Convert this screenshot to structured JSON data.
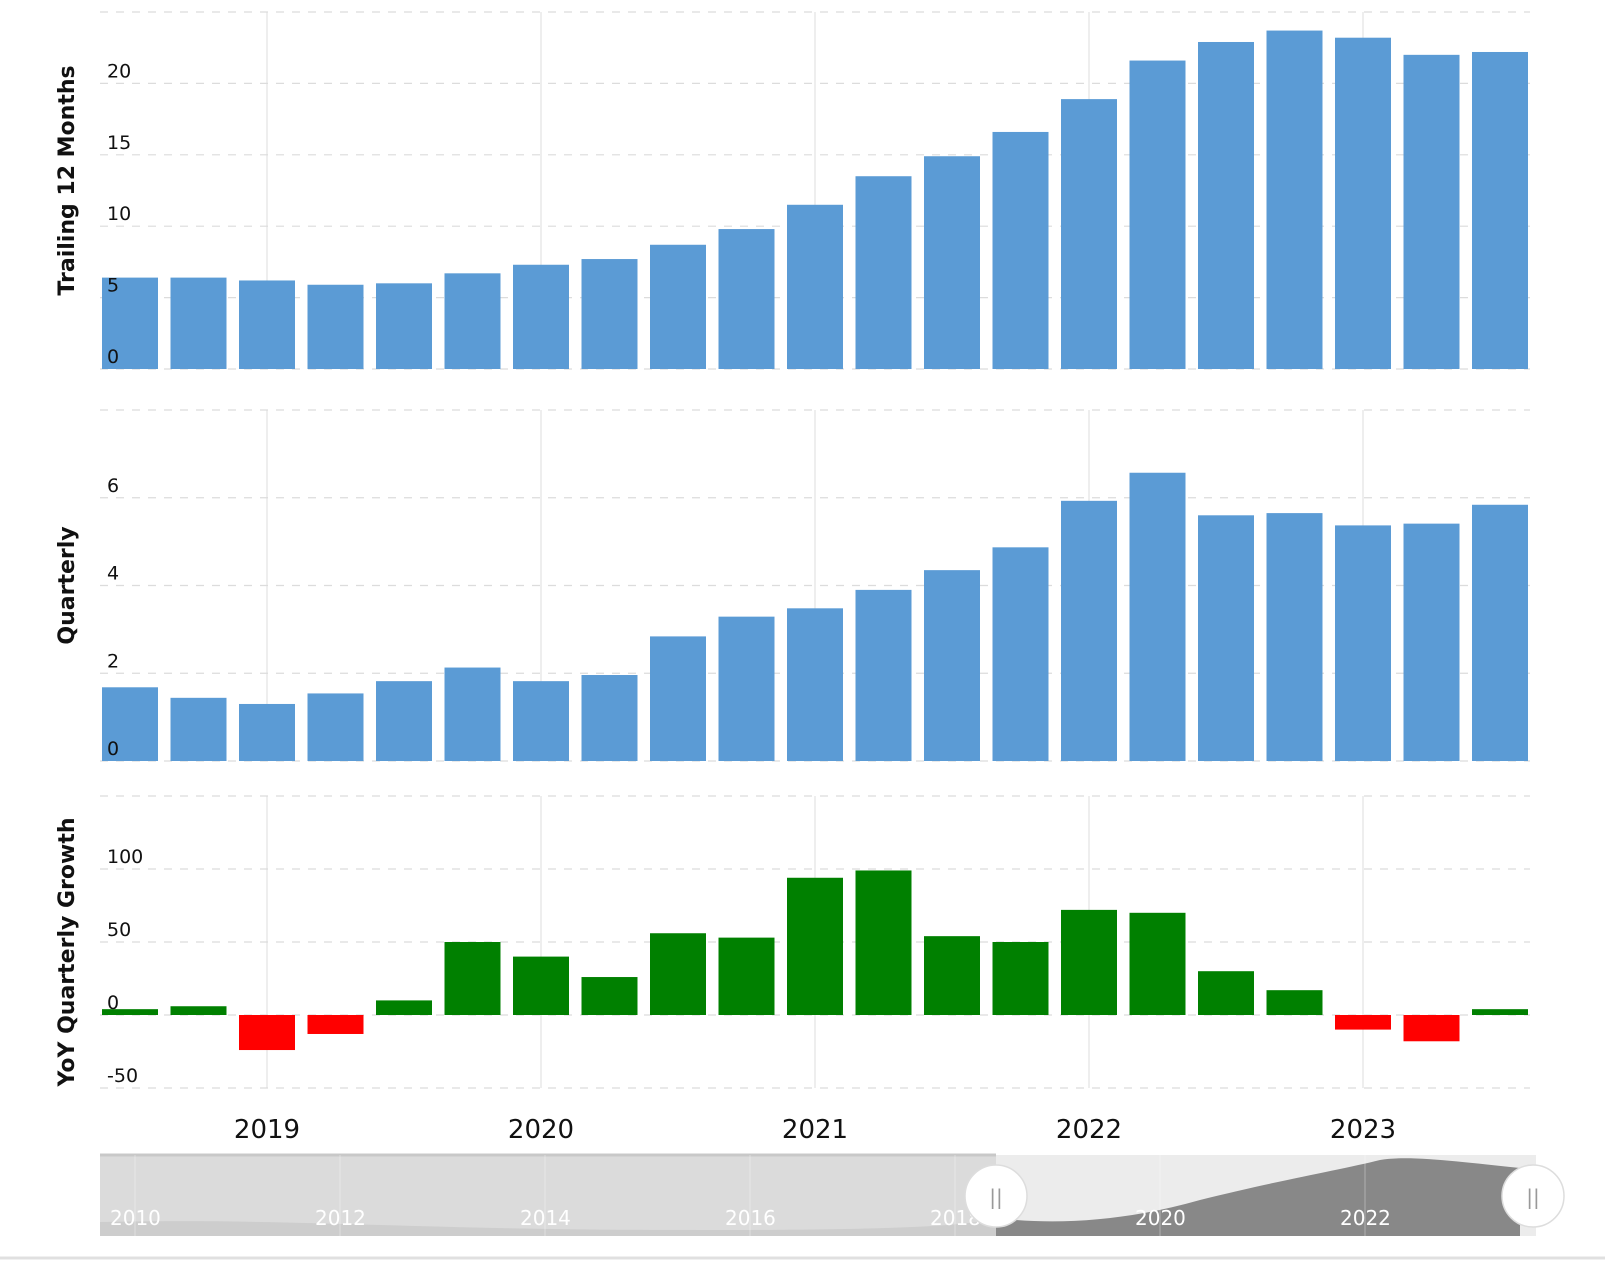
{
  "chart_data": [
    {
      "type": "bar",
      "ylabel": "Trailing 12 Months",
      "ylim": [
        0,
        25
      ],
      "yticks": [
        0,
        5,
        10,
        15,
        20
      ],
      "grid": true,
      "color": "#5b9bd5",
      "x": [
        "2018-06-30",
        "2018-09-30",
        "2018-12-31",
        "2019-03-31",
        "2019-06-30",
        "2019-09-30",
        "2019-12-31",
        "2020-03-31",
        "2020-06-30",
        "2020-09-30",
        "2020-12-31",
        "2021-03-31",
        "2021-06-30",
        "2021-09-30",
        "2021-12-31",
        "2022-03-31",
        "2022-06-30",
        "2022-09-30",
        "2022-12-31",
        "2023-03-31",
        "2023-06-30"
      ],
      "values": [
        6.4,
        6.4,
        6.2,
        5.9,
        6.0,
        6.7,
        7.3,
        7.7,
        8.7,
        9.8,
        11.5,
        13.5,
        14.9,
        16.6,
        18.9,
        21.6,
        22.9,
        23.7,
        23.2,
        22.0,
        22.2
      ]
    },
    {
      "type": "bar",
      "ylabel": "Quarterly",
      "ylim": [
        0,
        8
      ],
      "yticks": [
        0,
        2,
        4,
        6
      ],
      "grid": true,
      "color": "#5b9bd5",
      "x": [
        "2018-06-30",
        "2018-09-30",
        "2018-12-31",
        "2019-03-31",
        "2019-06-30",
        "2019-09-30",
        "2019-12-31",
        "2020-03-31",
        "2020-06-30",
        "2020-09-30",
        "2020-12-31",
        "2021-03-31",
        "2021-06-30",
        "2021-09-30",
        "2021-12-31",
        "2022-03-31",
        "2022-06-30",
        "2022-09-30",
        "2022-12-31",
        "2023-03-31",
        "2023-06-30"
      ],
      "values": [
        1.68,
        1.44,
        1.3,
        1.54,
        1.82,
        2.13,
        1.82,
        1.96,
        2.84,
        3.29,
        3.48,
        3.9,
        4.35,
        4.87,
        5.93,
        6.57,
        5.6,
        5.65,
        5.37,
        5.41,
        5.84
      ]
    },
    {
      "type": "bar",
      "ylabel": "YoY Quarterly Growth",
      "ylim": [
        -50,
        150
      ],
      "yticks": [
        -50,
        0,
        50,
        100
      ],
      "grid": true,
      "positive_color": "#008000",
      "negative_color": "#ff0000",
      "x": [
        "2018-06-30",
        "2018-09-30",
        "2018-12-31",
        "2019-03-31",
        "2019-06-30",
        "2019-09-30",
        "2019-12-31",
        "2020-03-31",
        "2020-06-30",
        "2020-09-30",
        "2020-12-31",
        "2021-03-31",
        "2021-06-30",
        "2021-09-30",
        "2021-12-31",
        "2022-03-31",
        "2022-06-30",
        "2022-09-30",
        "2022-12-31",
        "2023-03-31",
        "2023-06-30"
      ],
      "values": [
        4,
        6,
        -24,
        -13,
        10,
        50,
        40,
        26,
        56,
        53,
        94,
        99,
        54,
        50,
        72,
        70,
        30,
        17,
        -10,
        -18,
        4
      ]
    }
  ],
  "x_axis": {
    "tick_labels": [
      "2019",
      "2020",
      "2021",
      "2022",
      "2023"
    ]
  },
  "navigator": {
    "tick_labels": [
      "2010",
      "2012",
      "2014",
      "2016",
      "2018",
      "2020",
      "2022"
    ],
    "handle_glyph": "||",
    "selected_range": [
      "2018",
      "2023"
    ]
  }
}
